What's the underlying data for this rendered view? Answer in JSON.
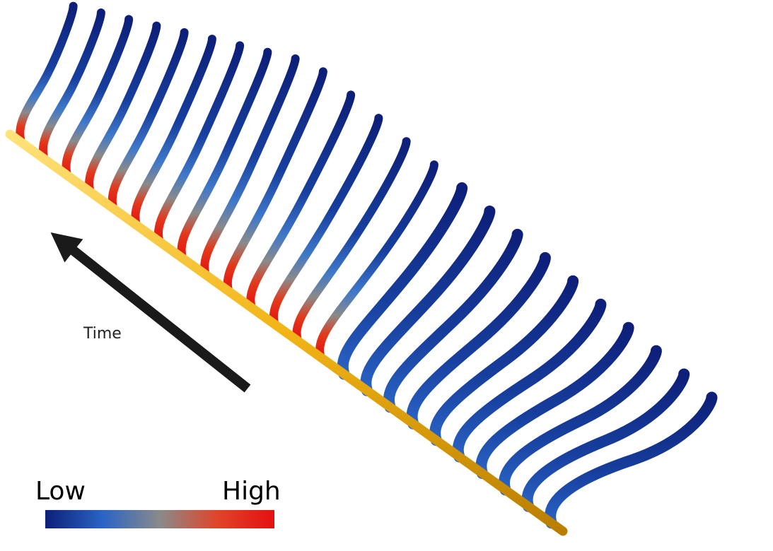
{
  "labels": {
    "time": "Time",
    "low": "Low",
    "high": "High"
  },
  "colors": {
    "rail": "#f2b415",
    "rail_edge": "#b97e00",
    "arrow": "#1a1a1a",
    "colormap": [
      "#0d1f78",
      "#2a64c4",
      "#8a8a8a",
      "#e0452a",
      "#e41010"
    ]
  }
}
